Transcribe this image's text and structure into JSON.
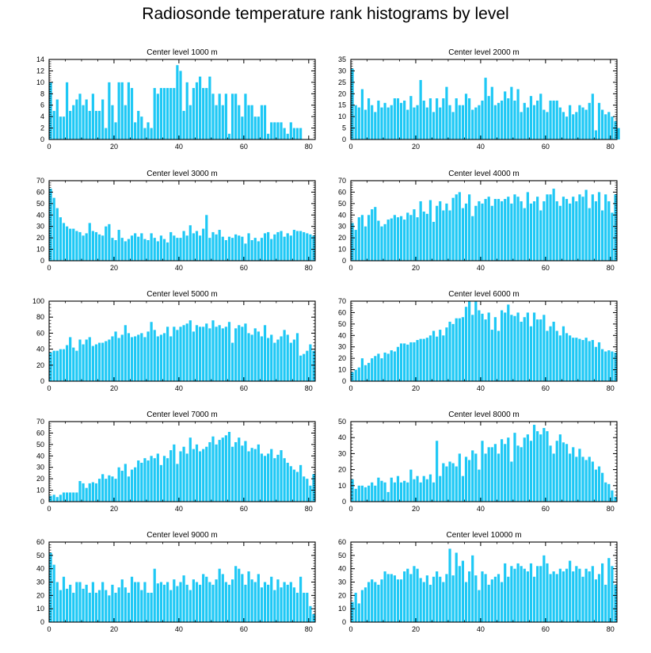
{
  "title": "Radiosonde temperature rank histograms by level",
  "bar_color": "#1ec8f5",
  "chart_data": [
    {
      "type": "bar",
      "title": "Center level 1000 m",
      "xlim": [
        0,
        82
      ],
      "ylim": [
        0,
        14
      ],
      "xticks": [
        0,
        20,
        40,
        60,
        80
      ],
      "yticks": [
        0,
        2,
        4,
        6,
        8,
        10,
        12,
        14
      ],
      "values": [
        10,
        5,
        7,
        4,
        4,
        10,
        5,
        6,
        7,
        8,
        6,
        7,
        5,
        8,
        5,
        5,
        7,
        2,
        10,
        6,
        3,
        10,
        10,
        6,
        10,
        9,
        3,
        5,
        4,
        2,
        3,
        2,
        9,
        8,
        9,
        9,
        9,
        9,
        9,
        13,
        12,
        5,
        10,
        6,
        9,
        10,
        11,
        9,
        9,
        11,
        8,
        6,
        8,
        6,
        8,
        1,
        8,
        8,
        6,
        4,
        8,
        6,
        6,
        4,
        4,
        6,
        6,
        1,
        3,
        3,
        3,
        3,
        2,
        1,
        3,
        2,
        2,
        2
      ]
    },
    {
      "type": "bar",
      "title": "Center level 2000 m",
      "xlim": [
        0,
        82
      ],
      "ylim": [
        0,
        35
      ],
      "xticks": [
        0,
        20,
        40,
        60,
        80
      ],
      "yticks": [
        0,
        5,
        10,
        15,
        20,
        25,
        30,
        35
      ],
      "values": [
        31,
        15,
        14,
        22,
        13,
        18,
        15,
        12,
        17,
        14,
        16,
        14,
        15,
        18,
        18,
        16,
        17,
        13,
        19,
        14,
        15,
        26,
        17,
        14,
        18,
        12,
        18,
        14,
        18,
        23,
        15,
        12,
        18,
        15,
        15,
        20,
        18,
        13,
        14,
        15,
        17,
        27,
        19,
        23,
        15,
        16,
        17,
        21,
        18,
        23,
        17,
        22,
        12,
        16,
        14,
        19,
        15,
        17,
        20,
        13,
        12,
        17,
        17,
        17,
        14,
        12,
        10,
        15,
        11,
        12,
        15,
        14,
        13,
        16,
        20,
        4,
        16,
        13,
        11,
        12,
        10,
        8,
        5
      ]
    },
    {
      "type": "bar",
      "title": "Center level 3000 m",
      "xlim": [
        0,
        82
      ],
      "ylim": [
        0,
        70
      ],
      "xticks": [
        0,
        20,
        40,
        60,
        80
      ],
      "yticks": [
        0,
        10,
        20,
        30,
        40,
        50,
        60,
        70
      ],
      "values": [
        63,
        55,
        46,
        38,
        33,
        30,
        28,
        28,
        26,
        25,
        22,
        24,
        33,
        26,
        25,
        23,
        22,
        30,
        32,
        20,
        18,
        27,
        20,
        17,
        19,
        22,
        24,
        21,
        24,
        19,
        18,
        24,
        20,
        17,
        22,
        19,
        16,
        25,
        22,
        20,
        20,
        26,
        22,
        31,
        24,
        26,
        22,
        28,
        40,
        20,
        25,
        23,
        27,
        21,
        18,
        21,
        20,
        23,
        22,
        21,
        15,
        24,
        18,
        20,
        17,
        20,
        24,
        25,
        19,
        23,
        25,
        26,
        21,
        24,
        22,
        27,
        26,
        26,
        25,
        24,
        23,
        22
      ]
    },
    {
      "type": "bar",
      "title": "Center level 4000 m",
      "xlim": [
        0,
        82
      ],
      "ylim": [
        0,
        70
      ],
      "xticks": [
        0,
        20,
        40,
        60,
        80
      ],
      "yticks": [
        0,
        10,
        20,
        30,
        40,
        50,
        60,
        70
      ],
      "values": [
        33,
        27,
        38,
        40,
        30,
        40,
        45,
        47,
        35,
        30,
        32,
        36,
        37,
        40,
        38,
        39,
        36,
        42,
        40,
        45,
        38,
        52,
        43,
        41,
        53,
        34,
        48,
        52,
        44,
        50,
        44,
        55,
        58,
        60,
        46,
        50,
        58,
        39,
        48,
        52,
        50,
        54,
        56,
        48,
        54,
        54,
        52,
        54,
        56,
        50,
        58,
        56,
        52,
        46,
        60,
        50,
        52,
        56,
        44,
        52,
        58,
        58,
        63,
        52,
        48,
        56,
        54,
        50,
        56,
        52,
        58,
        56,
        62,
        46,
        58,
        52,
        60,
        44,
        58,
        52,
        42,
        58
      ]
    },
    {
      "type": "bar",
      "title": "Center level 5000 m",
      "xlim": [
        0,
        82
      ],
      "ylim": [
        0,
        100
      ],
      "xticks": [
        0,
        20,
        40,
        60,
        80
      ],
      "yticks": [
        0,
        20,
        40,
        60,
        80,
        100
      ],
      "values": [
        36,
        38,
        38,
        40,
        40,
        45,
        55,
        42,
        38,
        52,
        46,
        52,
        55,
        44,
        46,
        48,
        48,
        50,
        52,
        56,
        62,
        54,
        58,
        70,
        60,
        55,
        56,
        58,
        60,
        55,
        62,
        74,
        64,
        56,
        58,
        60,
        68,
        56,
        68,
        64,
        68,
        70,
        72,
        76,
        62,
        70,
        68,
        68,
        72,
        66,
        76,
        68,
        70,
        66,
        68,
        74,
        48,
        66,
        70,
        68,
        72,
        60,
        58,
        66,
        62,
        56,
        70,
        54,
        58,
        48,
        52,
        56,
        64,
        58,
        48,
        52,
        60,
        32,
        34,
        38,
        46,
        38
      ]
    },
    {
      "type": "bar",
      "title": "Center level 6000 m",
      "xlim": [
        0,
        82
      ],
      "ylim": [
        0,
        70
      ],
      "xticks": [
        0,
        20,
        40,
        60,
        80
      ],
      "yticks": [
        0,
        10,
        20,
        30,
        40,
        50,
        60,
        70
      ],
      "values": [
        8,
        10,
        12,
        20,
        14,
        16,
        20,
        22,
        24,
        20,
        25,
        24,
        27,
        26,
        30,
        33,
        33,
        32,
        34,
        34,
        36,
        37,
        37,
        38,
        40,
        44,
        39,
        45,
        40,
        47,
        52,
        50,
        55,
        55,
        56,
        65,
        70,
        58,
        70,
        62,
        59,
        54,
        60,
        45,
        56,
        44,
        62,
        60,
        67,
        58,
        57,
        60,
        52,
        56,
        60,
        48,
        60,
        54,
        54,
        58,
        44,
        48,
        52,
        44,
        40,
        48,
        42,
        40,
        38,
        38,
        37,
        36,
        38,
        35,
        36,
        30,
        34,
        28,
        26,
        27,
        26,
        25
      ]
    },
    {
      "type": "bar",
      "title": "Center level 7000 m",
      "xlim": [
        0,
        82
      ],
      "ylim": [
        0,
        70
      ],
      "xticks": [
        0,
        20,
        40,
        60,
        80
      ],
      "yticks": [
        0,
        10,
        20,
        30,
        40,
        50,
        60,
        70
      ],
      "values": [
        5,
        6,
        4,
        6,
        8,
        8,
        8,
        8,
        8,
        18,
        16,
        12,
        16,
        17,
        16,
        20,
        24,
        20,
        23,
        22,
        20,
        30,
        27,
        33,
        22,
        28,
        30,
        36,
        34,
        38,
        36,
        40,
        38,
        42,
        32,
        40,
        38,
        45,
        50,
        33,
        44,
        48,
        42,
        56,
        46,
        50,
        44,
        46,
        48,
        52,
        57,
        50,
        54,
        56,
        58,
        61,
        48,
        52,
        56,
        49,
        53,
        44,
        47,
        46,
        50,
        42,
        40,
        42,
        46,
        38,
        41,
        45,
        38,
        34,
        31,
        28,
        26,
        32,
        22,
        20,
        14,
        24
      ]
    },
    {
      "type": "bar",
      "title": "Center level 8000 m",
      "xlim": [
        0,
        82
      ],
      "ylim": [
        0,
        50
      ],
      "xticks": [
        0,
        20,
        40,
        60,
        80
      ],
      "yticks": [
        0,
        10,
        20,
        30,
        40,
        50
      ],
      "values": [
        14,
        8,
        10,
        10,
        9,
        10,
        12,
        10,
        15,
        13,
        12,
        6,
        15,
        12,
        16,
        12,
        13,
        12,
        20,
        14,
        16,
        12,
        16,
        14,
        17,
        12,
        38,
        16,
        24,
        22,
        25,
        24,
        22,
        30,
        16,
        28,
        26,
        32,
        30,
        20,
        38,
        30,
        34,
        34,
        36,
        30,
        39,
        36,
        40,
        25,
        43,
        35,
        34,
        40,
        42,
        38,
        48,
        44,
        42,
        46,
        44,
        35,
        30,
        38,
        42,
        37,
        36,
        30,
        34,
        28,
        33,
        28,
        26,
        28,
        25,
        20,
        22,
        18,
        12,
        11,
        7,
        3
      ]
    },
    {
      "type": "bar",
      "title": "Center level 9000 m",
      "xlim": [
        0,
        82
      ],
      "ylim": [
        0,
        60
      ],
      "xticks": [
        0,
        20,
        40,
        60,
        80
      ],
      "yticks": [
        0,
        10,
        20,
        30,
        40,
        50,
        60
      ],
      "values": [
        52,
        43,
        30,
        24,
        34,
        25,
        28,
        22,
        30,
        30,
        25,
        28,
        22,
        30,
        22,
        24,
        30,
        24,
        20,
        28,
        22,
        26,
        32,
        26,
        22,
        34,
        30,
        30,
        24,
        30,
        22,
        22,
        40,
        29,
        30,
        28,
        30,
        24,
        32,
        27,
        30,
        35,
        28,
        24,
        32,
        30,
        28,
        36,
        34,
        30,
        28,
        32,
        40,
        36,
        30,
        28,
        32,
        42,
        40,
        36,
        28,
        38,
        32,
        30,
        36,
        26,
        30,
        28,
        34,
        24,
        32,
        26,
        30,
        28,
        30,
        26,
        22,
        34,
        22,
        22,
        12,
        6
      ]
    },
    {
      "type": "bar",
      "title": "Center level 10000 m",
      "xlim": [
        0,
        82
      ],
      "ylim": [
        0,
        60
      ],
      "xticks": [
        0,
        20,
        40,
        60,
        80
      ],
      "yticks": [
        0,
        10,
        20,
        30,
        40,
        50,
        60
      ],
      "values": [
        15,
        22,
        14,
        24,
        26,
        30,
        32,
        30,
        28,
        32,
        38,
        36,
        36,
        35,
        32,
        32,
        38,
        40,
        36,
        42,
        40,
        33,
        30,
        35,
        28,
        34,
        38,
        34,
        30,
        36,
        55,
        35,
        52,
        42,
        46,
        30,
        38,
        50,
        35,
        24,
        38,
        36,
        28,
        32,
        34,
        36,
        30,
        44,
        34,
        42,
        40,
        44,
        42,
        40,
        38,
        44,
        34,
        42,
        42,
        50,
        44,
        36,
        38,
        36,
        40,
        38,
        40,
        46,
        38,
        42,
        40,
        34,
        40,
        38,
        42,
        32,
        36,
        44,
        28,
        48,
        42,
        28
      ]
    }
  ]
}
